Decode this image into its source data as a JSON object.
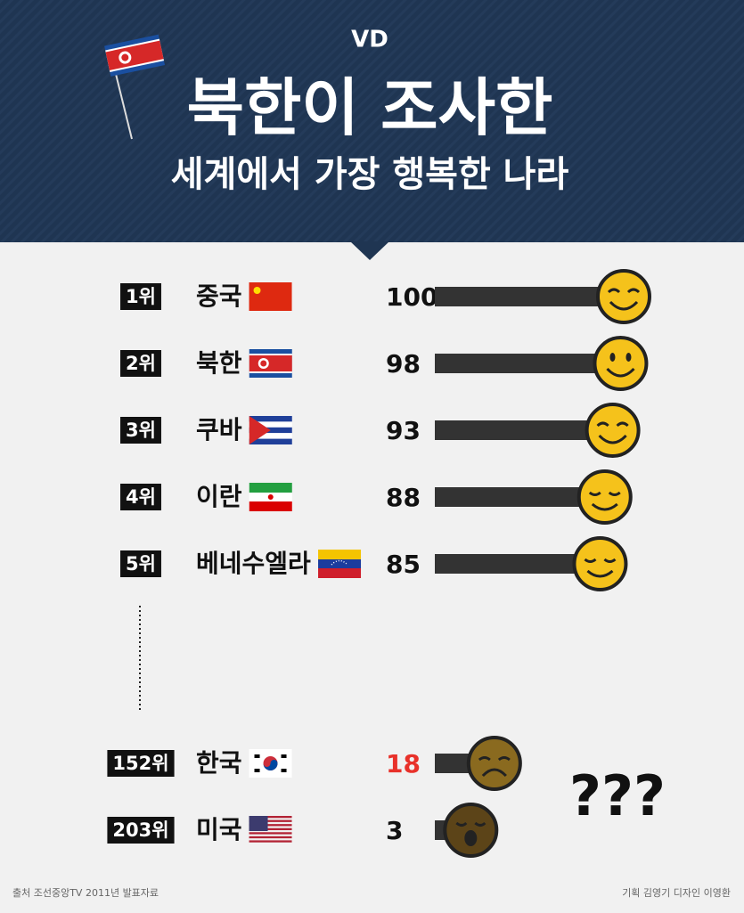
{
  "header": {
    "logo": "VD",
    "title": "북한이 조사한",
    "subtitle": "세계에서 가장 행복한 나라"
  },
  "chart_data": {
    "type": "bar",
    "ranks": [
      "1위",
      "2위",
      "3위",
      "4위",
      "5위",
      "152위",
      "203위"
    ],
    "categories": [
      "중국",
      "북한",
      "쿠바",
      "이란",
      "베네수엘라",
      "한국",
      "미국"
    ],
    "values": [
      100,
      98,
      93,
      88,
      85,
      18,
      3
    ],
    "color": "#333333",
    "value_colors": [
      "#111111",
      "#111111",
      "#111111",
      "#111111",
      "#111111",
      "#e8312a",
      "#111111"
    ],
    "face_colors": [
      "#f5c21b",
      "#f5c21b",
      "#f5c21b",
      "#f5c21b",
      "#f5c21b",
      "#8a6a1f",
      "#5c4418"
    ]
  },
  "annotation": "???",
  "footer": {
    "source": "출처 조선중앙TV 2011년 발표자료",
    "credit": "기획 김영기 디자인 이영환"
  }
}
